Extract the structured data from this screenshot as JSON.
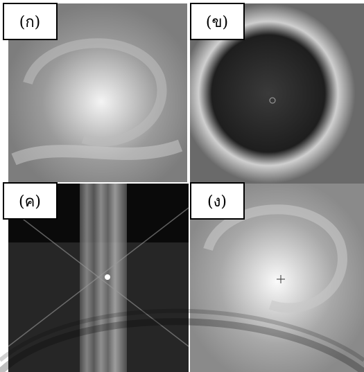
{
  "panels": [
    {
      "label": "(ก)"
    },
    {
      "label": "(ข)"
    },
    {
      "label": "(ค)"
    },
    {
      "label": "(ง)"
    }
  ]
}
